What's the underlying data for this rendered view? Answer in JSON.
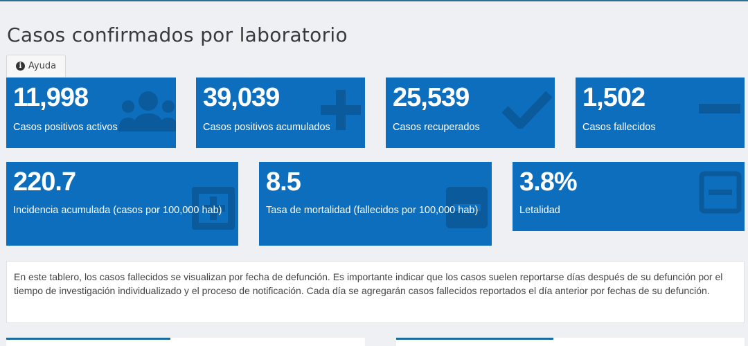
{
  "page": {
    "title": "Casos confirmados por laboratorio",
    "help_label": "Ayuda",
    "accent_color": "#0d6ebd"
  },
  "cards_row1": [
    {
      "value": "11,998",
      "label": "Casos positivos activos",
      "icon": "users-icon"
    },
    {
      "value": "39,039",
      "label": "Casos positivos acumulados",
      "icon": "plus-icon"
    },
    {
      "value": "25,539",
      "label": "Casos recuperados",
      "icon": "check-icon"
    },
    {
      "value": "1,502",
      "label": "Casos fallecidos",
      "icon": "minus-icon"
    }
  ],
  "cards_row2": [
    {
      "value": "220.7",
      "label": "Incidencia acumulada (casos por 100,000 hab)",
      "icon": "plus-square-icon"
    },
    {
      "value": "8.5",
      "label": "Tasa de mortalidad (fallecidos por 100,000 hab)",
      "icon": "minus-square-icon"
    },
    {
      "value": "3.8%",
      "label": "Letalidad",
      "icon": "minus-square-outline-icon"
    }
  ],
  "note": {
    "text": "En este tablero, los casos fallecidos se visualizan por fecha de defunción. Es importante indicar que los casos suelen reportarse días después de su defunción por el tiempo de investigación individualizado y el proceso de notificación. Cada día se agregarán casos fallecidos reportados el día anterior por fechas de su defunción."
  }
}
